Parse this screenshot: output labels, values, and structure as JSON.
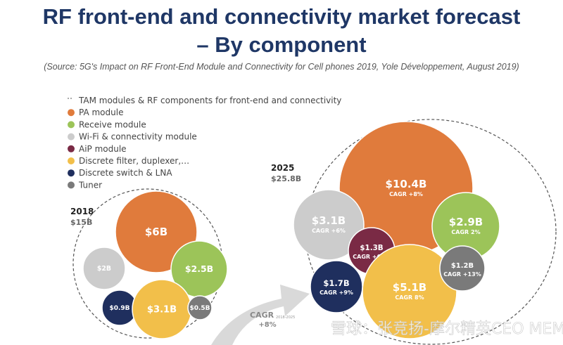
{
  "title_line1": "RF front-end and connectivity market forecast",
  "title_line2": "– By component",
  "source": "(Source: 5G's Impact on RF Front-End Module and Connectivity for Cell phones 2019, Yole Développement, August 2019)",
  "watermark": "雪球：张竞扬-摩尔精英CEO  MEMS",
  "chart_data": {
    "type": "bubble",
    "title": "RF front-end and connectivity market forecast – By component",
    "legend": [
      {
        "name": "TAM modules & RF components for front-end and connectivity",
        "color": "#555555",
        "style": "dashed"
      },
      {
        "name": "PA module",
        "color": "#e07b3c"
      },
      {
        "name": "Receive module",
        "color": "#9cc459"
      },
      {
        "name": "Wi-Fi & connectivity module",
        "color": "#cccccc"
      },
      {
        "name": "AiP module",
        "color": "#7a2a45"
      },
      {
        "name": "Discrete filter, duplexer,…",
        "color": "#f2bf4a"
      },
      {
        "name": "Discrete switch & LNA",
        "color": "#1f2f5e"
      },
      {
        "name": "Tuner",
        "color": "#7a7a7a"
      }
    ],
    "years": [
      {
        "year": "2018",
        "total": "$15B",
        "values": [
          {
            "component": "PA module",
            "label": "$6B",
            "value": 6
          },
          {
            "component": "Wi-Fi & connectivity module",
            "label": "$2B",
            "value": 2
          },
          {
            "component": "Receive module",
            "label": "$2.5B",
            "value": 2.5
          },
          {
            "component": "Discrete switch & LNA",
            "label": "$0.9B",
            "value": 0.9
          },
          {
            "component": "Discrete filter, duplexer,…",
            "label": "$3.1B",
            "value": 3.1
          },
          {
            "component": "Tuner",
            "label": "$0.5B",
            "value": 0.5
          }
        ]
      },
      {
        "year": "2025",
        "total": "$25.8B",
        "values": [
          {
            "component": "PA module",
            "label": "$10.4B",
            "value": 10.4,
            "cagr": "CAGR +8%"
          },
          {
            "component": "Wi-Fi & connectivity module",
            "label": "$3.1B",
            "value": 3.1,
            "cagr": "CAGR +6%"
          },
          {
            "component": "Receive module",
            "label": "$2.9B",
            "value": 2.9,
            "cagr": "CAGR 2%"
          },
          {
            "component": "AiP module",
            "label": "$1.3B",
            "value": 1.3,
            "cagr": "CAGR +68%"
          },
          {
            "component": "Discrete switch & LNA",
            "label": "$1.7B",
            "value": 1.7,
            "cagr": "CAGR +9%"
          },
          {
            "component": "Discrete filter, duplexer,…",
            "label": "$5.1B",
            "value": 5.1,
            "cagr": "CAGR 8%"
          },
          {
            "component": "Tuner",
            "label": "$1.2B",
            "value": 1.2,
            "cagr": "CAGR +13%"
          }
        ]
      }
    ],
    "overall_cagr": {
      "label": "CAGR",
      "period": "2018-2025",
      "value": "+8%"
    }
  }
}
